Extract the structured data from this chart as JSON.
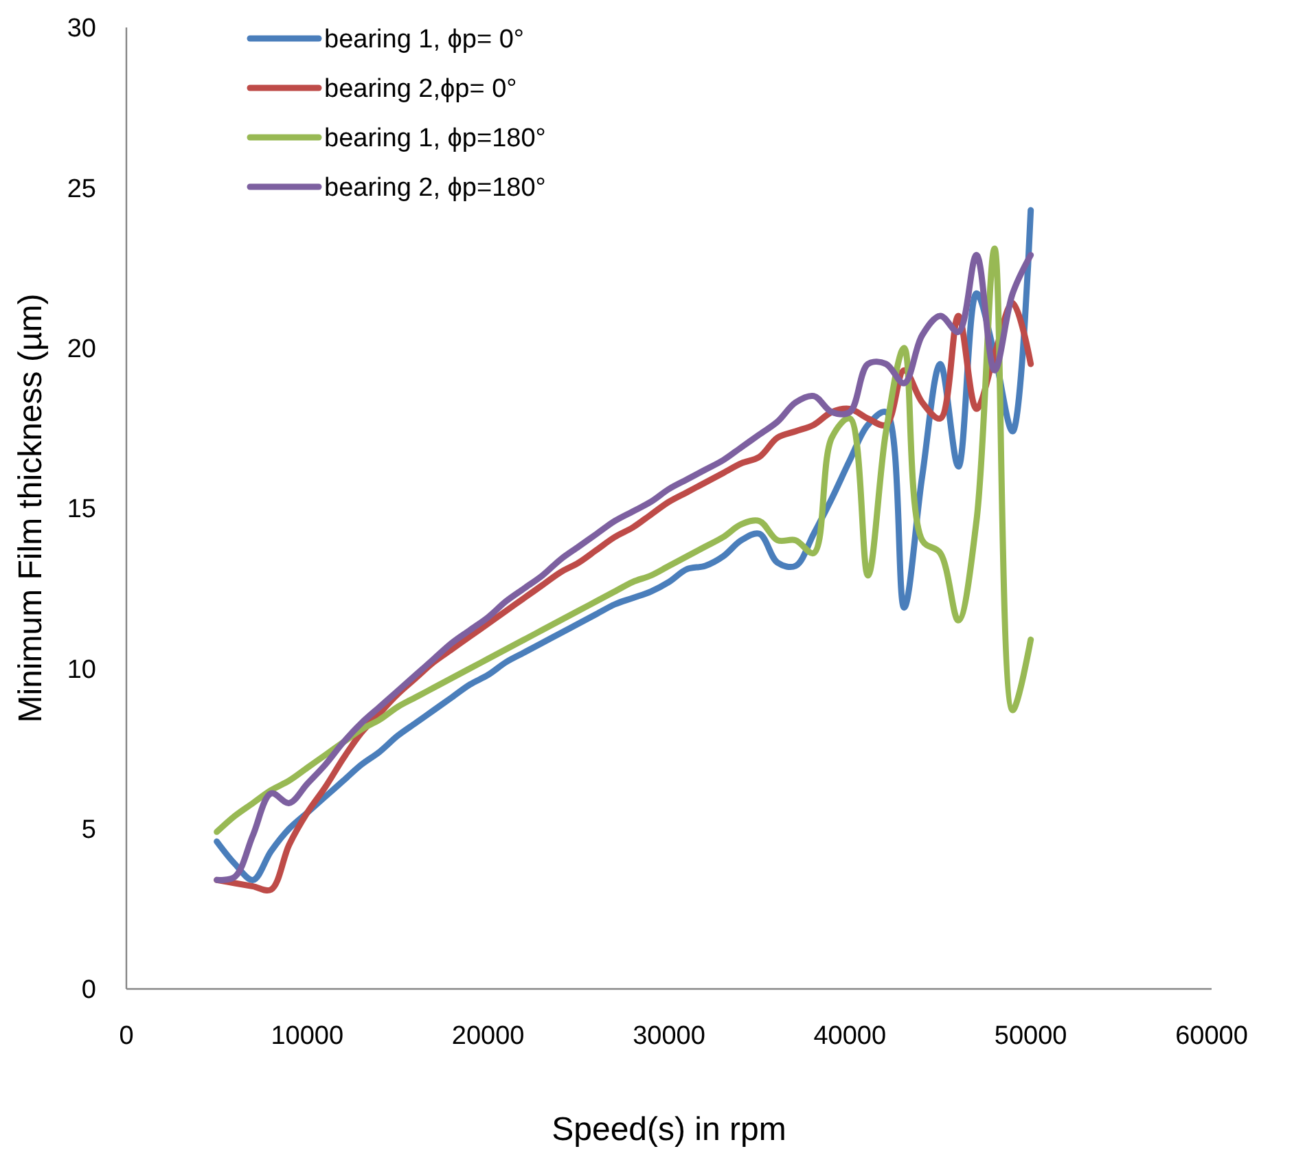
{
  "chart_data": {
    "type": "line",
    "xlabel": "Speed(s) in rpm",
    "ylabel": "Minimum Film thickness  (µm)",
    "x": [
      5000,
      6000,
      7000,
      8000,
      9000,
      10000,
      11000,
      12000,
      13000,
      14000,
      15000,
      16000,
      17000,
      18000,
      19000,
      20000,
      21000,
      22000,
      23000,
      24000,
      25000,
      26000,
      27000,
      28000,
      29000,
      30000,
      31000,
      32000,
      33000,
      34000,
      35000,
      36000,
      37000,
      38000,
      39000,
      40000,
      41000,
      42000,
      43000,
      44000,
      45000,
      46000,
      47000,
      48000,
      49000,
      50000
    ],
    "series": [
      {
        "name": "bearing 1, ϕp= 0°",
        "color": "#4a7ebb",
        "values": [
          4.6,
          3.9,
          3.4,
          4.3,
          5.0,
          5.5,
          6.0,
          6.5,
          7.0,
          7.4,
          7.9,
          8.3,
          8.7,
          9.1,
          9.5,
          9.8,
          10.2,
          10.5,
          10.8,
          11.1,
          11.4,
          11.7,
          12.0,
          12.2,
          12.4,
          12.7,
          13.1,
          13.2,
          13.5,
          14.0,
          14.2,
          13.3,
          13.2,
          14.2,
          15.3,
          16.5,
          17.6,
          18.0,
          11.9,
          16.0,
          19.5,
          16.3,
          21.7,
          19.8,
          17.4,
          24.3
        ]
      },
      {
        "name": "bearing 2,ϕp= 0°",
        "color": "#be4b48",
        "values": [
          3.4,
          3.3,
          3.2,
          3.1,
          4.5,
          5.5,
          6.3,
          7.2,
          8.0,
          8.6,
          9.2,
          9.7,
          10.2,
          10.6,
          11.0,
          11.4,
          11.8,
          12.2,
          12.6,
          13.0,
          13.3,
          13.7,
          14.1,
          14.4,
          14.8,
          15.2,
          15.5,
          15.8,
          16.1,
          16.4,
          16.6,
          17.2,
          17.4,
          17.6,
          18.0,
          18.1,
          17.8,
          17.6,
          19.3,
          18.3,
          17.8,
          21.0,
          18.1,
          19.8,
          21.4,
          19.5
        ]
      },
      {
        "name": "bearing 1, ϕp=180°",
        "color": "#98b954",
        "values": [
          4.9,
          5.4,
          5.8,
          6.2,
          6.5,
          6.9,
          7.3,
          7.7,
          8.1,
          8.4,
          8.8,
          9.1,
          9.4,
          9.7,
          10.0,
          10.3,
          10.6,
          10.9,
          11.2,
          11.5,
          11.8,
          12.1,
          12.4,
          12.7,
          12.9,
          13.2,
          13.5,
          13.8,
          14.1,
          14.5,
          14.6,
          14.0,
          14.0,
          13.6,
          17.2,
          17.8,
          12.9,
          17.4,
          20.0,
          14.0,
          13.6,
          11.5,
          14.6,
          23.1,
          8.7,
          10.9
        ]
      },
      {
        "name": "bearing 2, ϕp=180°",
        "color": "#7d60a0",
        "values": [
          3.4,
          3.5,
          4.8,
          6.1,
          5.8,
          6.4,
          7.0,
          7.7,
          8.3,
          8.8,
          9.3,
          9.8,
          10.3,
          10.8,
          11.2,
          11.6,
          12.1,
          12.5,
          12.9,
          13.4,
          13.8,
          14.2,
          14.6,
          14.9,
          15.2,
          15.6,
          15.9,
          16.2,
          16.5,
          16.9,
          17.3,
          17.7,
          18.3,
          18.5,
          18.0,
          18.0,
          19.5,
          19.5,
          18.9,
          20.4,
          21.0,
          20.5,
          22.9,
          19.3,
          21.7,
          22.9
        ]
      }
    ],
    "xlim": [
      0,
      60000
    ],
    "xticks": [
      0,
      10000,
      20000,
      30000,
      40000,
      50000,
      60000
    ],
    "ylim": [
      0,
      30
    ],
    "yticks": [
      0,
      5,
      10,
      15,
      20,
      25,
      30
    ],
    "grid": false,
    "legend": "top left",
    "marker": "none",
    "line_style": "solid"
  }
}
